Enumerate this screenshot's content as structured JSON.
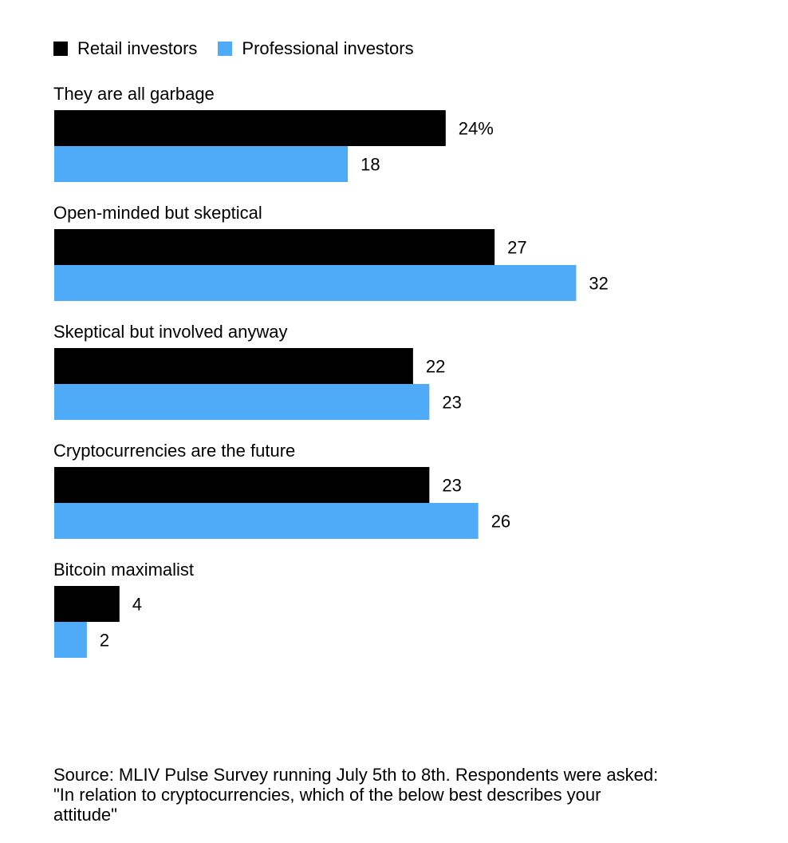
{
  "colors": {
    "retail": "#000000",
    "professional": "#4fabf7"
  },
  "legend": [
    {
      "label": "Retail investors",
      "color": "#000000"
    },
    {
      "label": "Professional investors",
      "color": "#4fabf7"
    }
  ],
  "chart_data": {
    "type": "bar",
    "orientation": "horizontal",
    "grouped": true,
    "categories": [
      "They are all garbage",
      "Open-minded but skeptical",
      "Skeptical but involved anyway",
      "Cryptocurrencies are the future",
      "Bitcoin maximalist"
    ],
    "series": [
      {
        "name": "Retail investors",
        "color": "#000000",
        "values": [
          24,
          27,
          22,
          23,
          4
        ],
        "labels": [
          "24%",
          "27",
          "22",
          "23",
          "4"
        ]
      },
      {
        "name": "Professional investors",
        "color": "#4fabf7",
        "values": [
          18,
          32,
          23,
          26,
          2
        ],
        "labels": [
          "18",
          "32",
          "23",
          "26",
          "2"
        ]
      }
    ],
    "unit": "%",
    "legend_position": "top-left",
    "grid": false
  },
  "source": "Source: MLIV Pulse Survey running July 5th to 8th. Respondents were asked:\n\"In relation to cryptocurrencies, which of the below best describes your\nattitude\""
}
